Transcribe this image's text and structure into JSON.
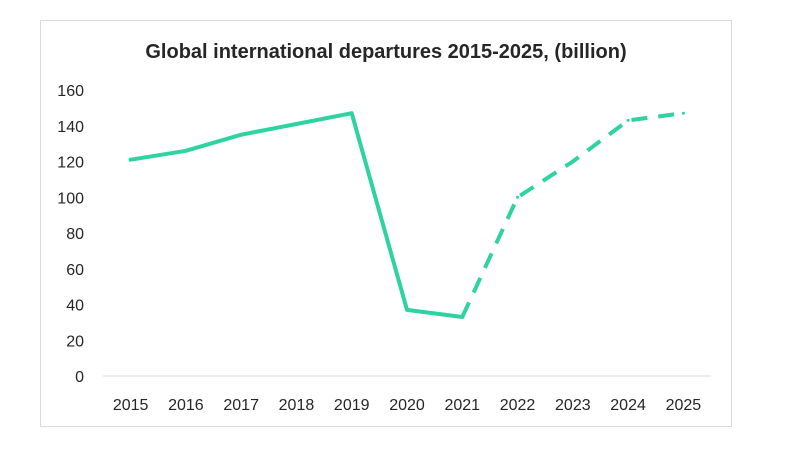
{
  "chart_data": {
    "type": "line",
    "title": "Global international departures 2015-2025, (billion)",
    "xlabel": "",
    "ylabel": "",
    "categories": [
      "2015",
      "2016",
      "2017",
      "2018",
      "2019",
      "2020",
      "2021",
      "2022",
      "2023",
      "2024",
      "2025"
    ],
    "series": [
      {
        "values": [
          121,
          126,
          135,
          141,
          147,
          37,
          33,
          100,
          120,
          143,
          147
        ],
        "actual_through": "2021",
        "projection_from": "2021",
        "style_actual": "solid",
        "style_projection": "dashed"
      }
    ],
    "ylim": [
      0,
      160
    ],
    "yticks": [
      0,
      20,
      40,
      60,
      80,
      100,
      120,
      140,
      160
    ],
    "grid": false,
    "legend": "none",
    "colors": {
      "line": "#2ed3a0",
      "axis": "#d9d9d9",
      "text": "#262626"
    }
  }
}
